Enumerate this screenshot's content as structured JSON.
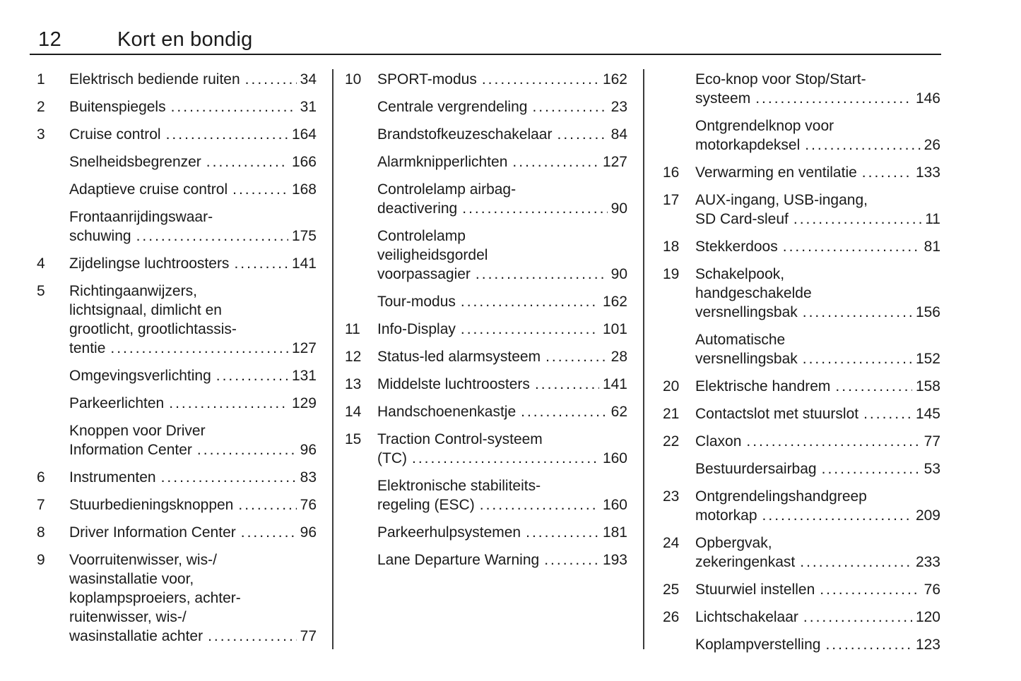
{
  "header": {
    "page_number": "12",
    "title": "Kort en bondig"
  },
  "colors": {
    "background": "#ffffff",
    "text": "#1a1a1a",
    "rule": "#1a1a1a",
    "divider": "#3c3c3c"
  },
  "columns": [
    {
      "entries": [
        {
          "num": "1",
          "lines": [
            "Elektrisch bediende ruiten"
          ],
          "page": "34"
        },
        {
          "num": "2",
          "lines": [
            "Buitenspiegels"
          ],
          "page": "31"
        },
        {
          "num": "3",
          "lines": [
            "Cruise control"
          ],
          "page": "164"
        },
        {
          "num": null,
          "lines": [
            "Snelheidsbegrenzer"
          ],
          "page": "166"
        },
        {
          "num": null,
          "lines": [
            "Adaptieve cruise control"
          ],
          "page": "168"
        },
        {
          "num": null,
          "lines": [
            "Frontaanrijdingswaar-",
            "schuwing"
          ],
          "page": "175"
        },
        {
          "num": "4",
          "lines": [
            "Zijdelingse luchtroosters"
          ],
          "page": "141"
        },
        {
          "num": "5",
          "lines": [
            "Richtingaanwijzers,",
            "lichtsignaal, dimlicht en",
            "grootlicht, grootlichtassis-",
            "tentie"
          ],
          "page": "127"
        },
        {
          "num": null,
          "lines": [
            "Omgevingsverlichting"
          ],
          "page": "131"
        },
        {
          "num": null,
          "lines": [
            "Parkeerlichten"
          ],
          "page": "129"
        },
        {
          "num": null,
          "lines": [
            "Knoppen voor Driver",
            "Information Center"
          ],
          "page": "96"
        },
        {
          "num": "6",
          "lines": [
            "Instrumenten"
          ],
          "page": "83"
        },
        {
          "num": "7",
          "lines": [
            "Stuurbedieningsknoppen"
          ],
          "page": "76"
        },
        {
          "num": "8",
          "lines": [
            "Driver Information Center"
          ],
          "page": "96"
        },
        {
          "num": "9",
          "lines": [
            "Voorruitenwisser, wis-/",
            "wasinstallatie voor,",
            "koplampsproeiers, achter-",
            "ruitenwisser, wis-/",
            "wasinstallatie achter"
          ],
          "page": "77"
        }
      ]
    },
    {
      "entries": [
        {
          "num": "10",
          "lines": [
            "SPORT-modus"
          ],
          "page": "162"
        },
        {
          "num": null,
          "lines": [
            "Centrale vergrendeling"
          ],
          "page": "23"
        },
        {
          "num": null,
          "lines": [
            "Brandstofkeuzeschakelaar"
          ],
          "page": "84"
        },
        {
          "num": null,
          "lines": [
            "Alarmknipperlichten"
          ],
          "page": "127"
        },
        {
          "num": null,
          "lines": [
            "Controlelamp airbag-",
            "deactivering"
          ],
          "page": "90"
        },
        {
          "num": null,
          "lines": [
            "Controlelamp",
            "veiligheidsgordel",
            "voorpassagier"
          ],
          "page": "90"
        },
        {
          "num": null,
          "lines": [
            "Tour-modus"
          ],
          "page": "162"
        },
        {
          "num": "11",
          "lines": [
            "Info-Display"
          ],
          "page": "101"
        },
        {
          "num": "12",
          "lines": [
            "Status-led alarmsysteem"
          ],
          "page": "28"
        },
        {
          "num": "13",
          "lines": [
            "Middelste luchtroosters"
          ],
          "page": "141"
        },
        {
          "num": "14",
          "lines": [
            "Handschoenenkastje"
          ],
          "page": "62"
        },
        {
          "num": "15",
          "lines": [
            "Traction Control-systeem",
            "(TC)"
          ],
          "page": "160"
        },
        {
          "num": null,
          "lines": [
            "Elektronische stabiliteits-",
            "regeling (ESC)"
          ],
          "page": "160"
        },
        {
          "num": null,
          "lines": [
            "Parkeerhulpsystemen"
          ],
          "page": "181"
        },
        {
          "num": null,
          "lines": [
            "Lane Departure Warning"
          ],
          "page": "193"
        }
      ]
    },
    {
      "entries": [
        {
          "num": null,
          "lines": [
            "Eco-knop voor Stop/Start-",
            "systeem"
          ],
          "page": "146"
        },
        {
          "num": null,
          "lines": [
            "Ontgrendelknop voor",
            "motorkapdeksel"
          ],
          "page": "26"
        },
        {
          "num": "16",
          "lines": [
            "Verwarming en ventilatie"
          ],
          "page": "133"
        },
        {
          "num": "17",
          "lines": [
            "AUX-ingang, USB-ingang,",
            "SD Card-sleuf"
          ],
          "page": "11"
        },
        {
          "num": "18",
          "lines": [
            "Stekkerdoos"
          ],
          "page": "81"
        },
        {
          "num": "19",
          "lines": [
            "Schakelpook,",
            "handgeschakelde",
            "versnellingsbak"
          ],
          "page": "156"
        },
        {
          "num": null,
          "lines": [
            "Automatische",
            "versnellingsbak"
          ],
          "page": "152"
        },
        {
          "num": "20",
          "lines": [
            "Elektrische handrem"
          ],
          "page": "158"
        },
        {
          "num": "21",
          "lines": [
            "Contactslot met stuurslot"
          ],
          "page": "145"
        },
        {
          "num": "22",
          "lines": [
            "Claxon"
          ],
          "page": "77"
        },
        {
          "num": null,
          "lines": [
            "Bestuurdersairbag"
          ],
          "page": "53"
        },
        {
          "num": "23",
          "lines": [
            "Ontgrendelingshandgreep",
            "motorkap"
          ],
          "page": "209"
        },
        {
          "num": "24",
          "lines": [
            "Opbergvak,",
            "zekeringenkast"
          ],
          "page": "233"
        },
        {
          "num": "25",
          "lines": [
            "Stuurwiel instellen"
          ],
          "page": "76"
        },
        {
          "num": "26",
          "lines": [
            "Lichtschakelaar"
          ],
          "page": "120"
        },
        {
          "num": null,
          "lines": [
            "Koplampverstelling"
          ],
          "page": "123"
        }
      ]
    }
  ]
}
